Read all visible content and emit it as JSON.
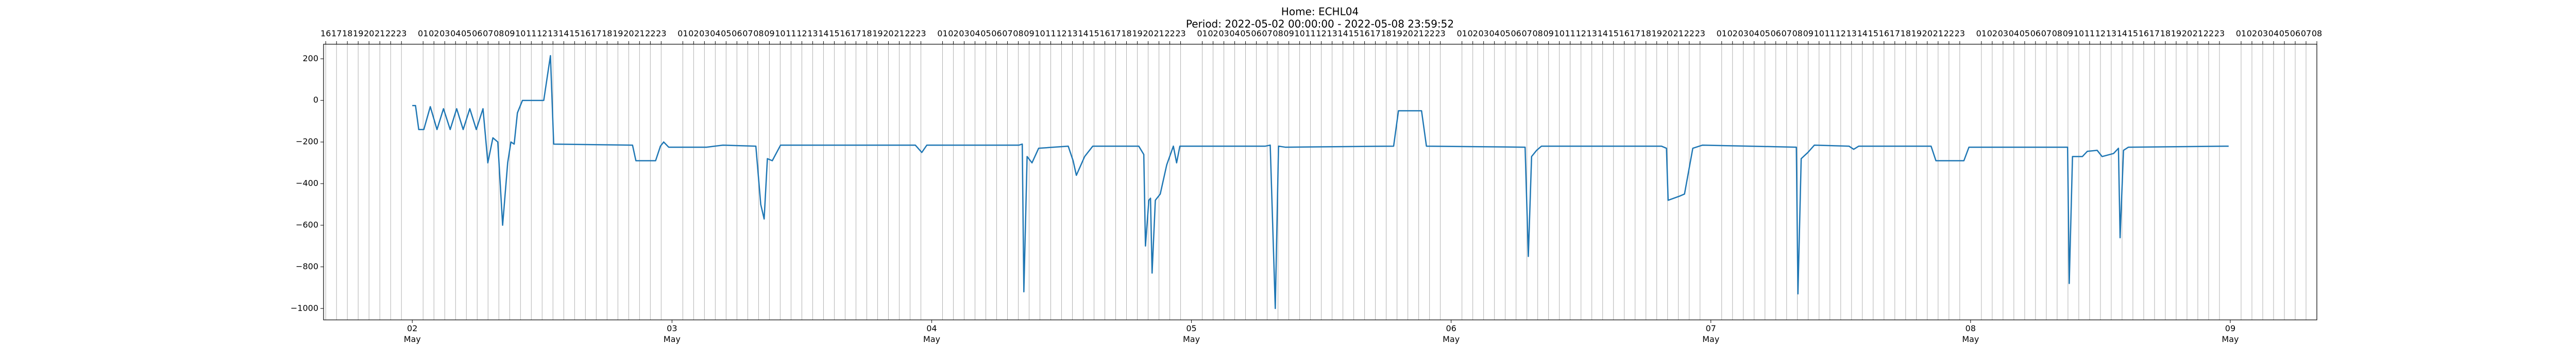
{
  "chart_data": {
    "type": "line",
    "title": "Home: ECHL04",
    "subtitle": "Period: 2022-05-02 00:00:00 - 2022-05-08 23:59:52",
    "x": [
      "2022-05-02T00:00",
      "2022-05-02T00:18",
      "2022-05-02T00:36",
      "2022-05-02T01:04",
      "2022-05-02T01:40",
      "2022-05-02T02:17",
      "2022-05-02T02:53",
      "2022-05-02T03:30",
      "2022-05-02T04:06",
      "2022-05-02T04:42",
      "2022-05-02T05:19",
      "2022-05-02T05:55",
      "2022-05-02T06:32",
      "2022-05-02T06:59",
      "2022-05-02T07:27",
      "2022-05-02T07:54",
      "2022-05-02T08:21",
      "2022-05-02T08:49",
      "2022-05-02T09:07",
      "2022-05-02T09:25",
      "2022-05-02T09:43",
      "2022-05-02T10:11",
      "2022-05-02T12:09",
      "2022-05-02T12:46",
      "2022-05-02T13:04",
      "2022-05-02T20:21",
      "2022-05-02T20:40",
      "2022-05-02T22:29",
      "2022-05-02T22:56",
      "2022-05-02T23:14",
      "2022-05-02T23:42",
      "2022-05-03T03:11",
      "2022-05-03T04:43",
      "2022-05-03T07:45",
      "2022-05-03T08:12",
      "2022-05-03T08:31",
      "2022-05-03T08:49",
      "2022-05-03T09:16",
      "2022-05-03T10:02",
      "2022-05-03T22:29",
      "2022-05-03T23:05",
      "2022-05-03T23:33",
      "2022-05-04T08:04",
      "2022-05-04T08:22",
      "2022-05-04T08:31",
      "2022-05-04T08:49",
      "2022-05-04T09:16",
      "2022-05-04T09:53",
      "2022-05-04T12:37",
      "2022-05-04T13:04",
      "2022-05-04T13:22",
      "2022-05-04T14:08",
      "2022-05-04T14:53",
      "2022-05-04T19:08",
      "2022-05-04T19:36",
      "2022-05-04T19:45",
      "2022-05-04T20:04",
      "2022-05-04T20:13",
      "2022-05-04T20:22",
      "2022-05-04T20:40",
      "2022-05-04T21:07",
      "2022-05-04T21:43",
      "2022-05-04T22:20",
      "2022-05-04T22:38",
      "2022-05-04T22:56",
      "2022-05-05T06:50",
      "2022-05-05T07:17",
      "2022-05-05T07:45",
      "2022-05-05T08:03",
      "2022-05-05T08:40",
      "2022-05-05T18:41",
      "2022-05-05T19:08",
      "2022-05-05T21:16",
      "2022-05-05T21:43",
      "2022-05-06T06:50",
      "2022-05-06T07:08",
      "2022-05-06T07:26",
      "2022-05-06T07:54",
      "2022-05-06T08:21",
      "2022-05-06T19:26",
      "2022-05-06T19:54",
      "2022-05-06T20:03",
      "2022-05-06T21:07",
      "2022-05-06T21:34",
      "2022-05-06T22:20",
      "2022-05-06T23:14",
      "2022-05-07T07:54",
      "2022-05-07T08:03",
      "2022-05-07T08:21",
      "2022-05-07T08:58",
      "2022-05-07T09:34",
      "2022-05-07T12:46",
      "2022-05-07T13:12",
      "2022-05-07T13:40",
      "2022-05-07T20:21",
      "2022-05-07T20:48",
      "2022-05-07T23:23",
      "2022-05-07T23:51",
      "2022-05-08T08:58",
      "2022-05-08T09:07",
      "2022-05-08T09:25",
      "2022-05-08T10:20",
      "2022-05-08T10:47",
      "2022-05-08T11:42",
      "2022-05-08T12:09",
      "2022-05-08T13:13",
      "2022-05-08T13:40",
      "2022-05-08T13:49",
      "2022-05-08T14:08",
      "2022-05-08T14:35",
      "2022-05-08T23:51"
    ],
    "series": [
      {
        "color": "#1f77b4",
        "values": [
          -25,
          -25,
          -140,
          -140,
          -30,
          -140,
          -40,
          -140,
          -40,
          -140,
          -40,
          -140,
          -40,
          -300,
          -180,
          -200,
          -600,
          -300,
          -200,
          -210,
          -60,
          0,
          0,
          215,
          -210,
          -215,
          -290,
          -290,
          -220,
          -200,
          -225,
          -225,
          -215,
          -220,
          -500,
          -570,
          -280,
          -290,
          -215,
          -215,
          -250,
          -215,
          -215,
          -210,
          -920,
          -270,
          -300,
          -230,
          -220,
          -290,
          -360,
          -270,
          -220,
          -220,
          -260,
          -700,
          -480,
          -470,
          -830,
          -480,
          -450,
          -310,
          -220,
          -300,
          -220,
          -220,
          -215,
          -1000,
          -220,
          -225,
          -220,
          -50,
          -50,
          -220,
          -225,
          -750,
          -270,
          -240,
          -220,
          -220,
          -230,
          -480,
          -460,
          -450,
          -230,
          -215,
          -225,
          -930,
          -280,
          -250,
          -215,
          -220,
          -235,
          -220,
          -220,
          -290,
          -290,
          -225,
          -225,
          -880,
          -270,
          -270,
          -245,
          -240,
          -270,
          -255,
          -230,
          -660,
          -240,
          -225,
          -220
        ]
      }
    ],
    "xlim": [
      "2022-05-01T15:48",
      "2022-05-09T08:00"
    ],
    "ylim": [
      -1055,
      270
    ],
    "yticks": [
      {
        "value": -1000,
        "label": "−1000"
      },
      {
        "value": -800,
        "label": "−800"
      },
      {
        "value": -600,
        "label": "−600"
      },
      {
        "value": -400,
        "label": "−400"
      },
      {
        "value": -200,
        "label": "−200"
      },
      0,
      200
    ],
    "xticks": [
      {
        "value": "2022-05-02T00:00",
        "label": "02\nMay"
      },
      {
        "value": "2022-05-03T00:00",
        "label": "03\nMay"
      },
      {
        "value": "2022-05-04T00:00",
        "label": "04\nMay"
      },
      {
        "value": "2022-05-05T00:00",
        "label": "05\nMay"
      },
      {
        "value": "2022-05-06T00:00",
        "label": "06\nMay"
      },
      {
        "value": "2022-05-07T00:00",
        "label": "07\nMay"
      },
      {
        "value": "2022-05-08T00:00",
        "label": "08\nMay"
      },
      {
        "value": "2022-05-09T00:00",
        "label": "09\nMay"
      }
    ],
    "x2ticks": [
      {
        "value": "2022-05-01T16:00",
        "label": "16"
      },
      {
        "value": "2022-05-01T17:00",
        "label": "17"
      },
      {
        "value": "2022-05-01T18:00",
        "label": "18"
      },
      {
        "value": "2022-05-01T19:00",
        "label": "19"
      },
      {
        "value": "2022-05-01T20:00",
        "label": "20"
      },
      {
        "value": "2022-05-01T21:00",
        "label": "21"
      },
      {
        "value": "2022-05-01T22:00",
        "label": "22"
      },
      {
        "value": "2022-05-01T23:00",
        "label": "23"
      },
      {
        "value": "2022-05-02T01:00",
        "label": "01"
      },
      {
        "value": "2022-05-02T02:00",
        "label": "02"
      },
      {
        "value": "2022-05-02T03:00",
        "label": "03"
      },
      {
        "value": "2022-05-02T04:00",
        "label": "04"
      },
      {
        "value": "2022-05-02T05:00",
        "label": "05"
      },
      {
        "value": "2022-05-02T06:00",
        "label": "06"
      },
      {
        "value": "2022-05-02T07:00",
        "label": "07"
      },
      {
        "value": "2022-05-02T08:00",
        "label": "08"
      },
      {
        "value": "2022-05-02T09:00",
        "label": "09"
      },
      {
        "value": "2022-05-02T10:00",
        "label": "10"
      },
      {
        "value": "2022-05-02T11:00",
        "label": "11"
      },
      {
        "value": "2022-05-02T12:00",
        "label": "12"
      },
      {
        "value": "2022-05-02T13:00",
        "label": "13"
      },
      {
        "value": "2022-05-02T14:00",
        "label": "14"
      },
      {
        "value": "2022-05-02T15:00",
        "label": "15"
      },
      {
        "value": "2022-05-02T16:00",
        "label": "16"
      },
      {
        "value": "2022-05-02T17:00",
        "label": "17"
      },
      {
        "value": "2022-05-02T18:00",
        "label": "18"
      },
      {
        "value": "2022-05-02T19:00",
        "label": "19"
      },
      {
        "value": "2022-05-02T20:00",
        "label": "20"
      },
      {
        "value": "2022-05-02T21:00",
        "label": "21"
      },
      {
        "value": "2022-05-02T22:00",
        "label": "22"
      },
      {
        "value": "2022-05-02T23:00",
        "label": "23"
      },
      {
        "value": "2022-05-03T01:00",
        "label": "01"
      },
      {
        "value": "2022-05-03T02:00",
        "label": "02"
      },
      {
        "value": "2022-05-03T03:00",
        "label": "03"
      },
      {
        "value": "2022-05-03T04:00",
        "label": "04"
      },
      {
        "value": "2022-05-03T05:00",
        "label": "05"
      },
      {
        "value": "2022-05-03T06:00",
        "label": "06"
      },
      {
        "value": "2022-05-03T07:00",
        "label": "07"
      },
      {
        "value": "2022-05-03T08:00",
        "label": "08"
      },
      {
        "value": "2022-05-03T09:00",
        "label": "09"
      },
      {
        "value": "2022-05-03T10:00",
        "label": "10"
      },
      {
        "value": "2022-05-03T11:00",
        "label": "11"
      },
      {
        "value": "2022-05-03T12:00",
        "label": "12"
      },
      {
        "value": "2022-05-03T13:00",
        "label": "13"
      },
      {
        "value": "2022-05-03T14:00",
        "label": "14"
      },
      {
        "value": "2022-05-03T15:00",
        "label": "15"
      },
      {
        "value": "2022-05-03T16:00",
        "label": "16"
      },
      {
        "value": "2022-05-03T17:00",
        "label": "17"
      },
      {
        "value": "2022-05-03T18:00",
        "label": "18"
      },
      {
        "value": "2022-05-03T19:00",
        "label": "19"
      },
      {
        "value": "2022-05-03T20:00",
        "label": "20"
      },
      {
        "value": "2022-05-03T21:00",
        "label": "21"
      },
      {
        "value": "2022-05-03T22:00",
        "label": "22"
      },
      {
        "value": "2022-05-03T23:00",
        "label": "23"
      },
      {
        "value": "2022-05-04T01:00",
        "label": "01"
      },
      {
        "value": "2022-05-04T02:00",
        "label": "02"
      },
      {
        "value": "2022-05-04T03:00",
        "label": "03"
      },
      {
        "value": "2022-05-04T04:00",
        "label": "04"
      },
      {
        "value": "2022-05-04T05:00",
        "label": "05"
      },
      {
        "value": "2022-05-04T06:00",
        "label": "06"
      },
      {
        "value": "2022-05-04T07:00",
        "label": "07"
      },
      {
        "value": "2022-05-04T08:00",
        "label": "08"
      },
      {
        "value": "2022-05-04T09:00",
        "label": "09"
      },
      {
        "value": "2022-05-04T10:00",
        "label": "10"
      },
      {
        "value": "2022-05-04T11:00",
        "label": "11"
      },
      {
        "value": "2022-05-04T12:00",
        "label": "12"
      },
      {
        "value": "2022-05-04T13:00",
        "label": "13"
      },
      {
        "value": "2022-05-04T14:00",
        "label": "14"
      },
      {
        "value": "2022-05-04T15:00",
        "label": "15"
      },
      {
        "value": "2022-05-04T16:00",
        "label": "16"
      },
      {
        "value": "2022-05-04T17:00",
        "label": "17"
      },
      {
        "value": "2022-05-04T18:00",
        "label": "18"
      },
      {
        "value": "2022-05-04T19:00",
        "label": "19"
      },
      {
        "value": "2022-05-04T20:00",
        "label": "20"
      },
      {
        "value": "2022-05-04T21:00",
        "label": "21"
      },
      {
        "value": "2022-05-04T22:00",
        "label": "22"
      },
      {
        "value": "2022-05-04T23:00",
        "label": "23"
      },
      {
        "value": "2022-05-05T01:00",
        "label": "01"
      },
      {
        "value": "2022-05-05T02:00",
        "label": "02"
      },
      {
        "value": "2022-05-05T03:00",
        "label": "03"
      },
      {
        "value": "2022-05-05T04:00",
        "label": "04"
      },
      {
        "value": "2022-05-05T05:00",
        "label": "05"
      },
      {
        "value": "2022-05-05T06:00",
        "label": "06"
      },
      {
        "value": "2022-05-05T07:00",
        "label": "07"
      },
      {
        "value": "2022-05-05T08:00",
        "label": "08"
      },
      {
        "value": "2022-05-05T09:00",
        "label": "09"
      },
      {
        "value": "2022-05-05T10:00",
        "label": "10"
      },
      {
        "value": "2022-05-05T11:00",
        "label": "11"
      },
      {
        "value": "2022-05-05T12:00",
        "label": "12"
      },
      {
        "value": "2022-05-05T13:00",
        "label": "13"
      },
      {
        "value": "2022-05-05T14:00",
        "label": "14"
      },
      {
        "value": "2022-05-05T15:00",
        "label": "15"
      },
      {
        "value": "2022-05-05T16:00",
        "label": "16"
      },
      {
        "value": "2022-05-05T17:00",
        "label": "17"
      },
      {
        "value": "2022-05-05T18:00",
        "label": "18"
      },
      {
        "value": "2022-05-05T19:00",
        "label": "19"
      },
      {
        "value": "2022-05-05T20:00",
        "label": "20"
      },
      {
        "value": "2022-05-05T21:00",
        "label": "21"
      },
      {
        "value": "2022-05-05T22:00",
        "label": "22"
      },
      {
        "value": "2022-05-05T23:00",
        "label": "23"
      },
      {
        "value": "2022-05-06T01:00",
        "label": "01"
      },
      {
        "value": "2022-05-06T02:00",
        "label": "02"
      },
      {
        "value": "2022-05-06T03:00",
        "label": "03"
      },
      {
        "value": "2022-05-06T04:00",
        "label": "04"
      },
      {
        "value": "2022-05-06T05:00",
        "label": "05"
      },
      {
        "value": "2022-05-06T06:00",
        "label": "06"
      },
      {
        "value": "2022-05-06T07:00",
        "label": "07"
      },
      {
        "value": "2022-05-06T08:00",
        "label": "08"
      },
      {
        "value": "2022-05-06T09:00",
        "label": "09"
      },
      {
        "value": "2022-05-06T10:00",
        "label": "10"
      },
      {
        "value": "2022-05-06T11:00",
        "label": "11"
      },
      {
        "value": "2022-05-06T12:00",
        "label": "12"
      },
      {
        "value": "2022-05-06T13:00",
        "label": "13"
      },
      {
        "value": "2022-05-06T14:00",
        "label": "14"
      },
      {
        "value": "2022-05-06T15:00",
        "label": "15"
      },
      {
        "value": "2022-05-06T16:00",
        "label": "16"
      },
      {
        "value": "2022-05-06T17:00",
        "label": "17"
      },
      {
        "value": "2022-05-06T18:00",
        "label": "18"
      },
      {
        "value": "2022-05-06T19:00",
        "label": "19"
      },
      {
        "value": "2022-05-06T20:00",
        "label": "20"
      },
      {
        "value": "2022-05-06T21:00",
        "label": "21"
      },
      {
        "value": "2022-05-06T22:00",
        "label": "22"
      },
      {
        "value": "2022-05-06T23:00",
        "label": "23"
      },
      {
        "value": "2022-05-07T01:00",
        "label": "01"
      },
      {
        "value": "2022-05-07T02:00",
        "label": "02"
      },
      {
        "value": "2022-05-07T03:00",
        "label": "03"
      },
      {
        "value": "2022-05-07T04:00",
        "label": "04"
      },
      {
        "value": "2022-05-07T05:00",
        "label": "05"
      },
      {
        "value": "2022-05-07T06:00",
        "label": "06"
      },
      {
        "value": "2022-05-07T07:00",
        "label": "07"
      },
      {
        "value": "2022-05-07T08:00",
        "label": "08"
      },
      {
        "value": "2022-05-07T09:00",
        "label": "09"
      },
      {
        "value": "2022-05-07T10:00",
        "label": "10"
      },
      {
        "value": "2022-05-07T11:00",
        "label": "11"
      },
      {
        "value": "2022-05-07T12:00",
        "label": "12"
      },
      {
        "value": "2022-05-07T13:00",
        "label": "13"
      },
      {
        "value": "2022-05-07T14:00",
        "label": "14"
      },
      {
        "value": "2022-05-07T15:00",
        "label": "15"
      },
      {
        "value": "2022-05-07T16:00",
        "label": "16"
      },
      {
        "value": "2022-05-07T17:00",
        "label": "17"
      },
      {
        "value": "2022-05-07T18:00",
        "label": "18"
      },
      {
        "value": "2022-05-07T19:00",
        "label": "19"
      },
      {
        "value": "2022-05-07T20:00",
        "label": "20"
      },
      {
        "value": "2022-05-07T21:00",
        "label": "21"
      },
      {
        "value": "2022-05-07T22:00",
        "label": "22"
      },
      {
        "value": "2022-05-07T23:00",
        "label": "23"
      },
      {
        "value": "2022-05-08T01:00",
        "label": "01"
      },
      {
        "value": "2022-05-08T02:00",
        "label": "02"
      },
      {
        "value": "2022-05-08T03:00",
        "label": "03"
      },
      {
        "value": "2022-05-08T04:00",
        "label": "04"
      },
      {
        "value": "2022-05-08T05:00",
        "label": "05"
      },
      {
        "value": "2022-05-08T06:00",
        "label": "06"
      },
      {
        "value": "2022-05-08T07:00",
        "label": "07"
      },
      {
        "value": "2022-05-08T08:00",
        "label": "08"
      },
      {
        "value": "2022-05-08T09:00",
        "label": "09"
      },
      {
        "value": "2022-05-08T10:00",
        "label": "10"
      },
      {
        "value": "2022-05-08T11:00",
        "label": "11"
      },
      {
        "value": "2022-05-08T12:00",
        "label": "12"
      },
      {
        "value": "2022-05-08T13:00",
        "label": "13"
      },
      {
        "value": "2022-05-08T14:00",
        "label": "14"
      },
      {
        "value": "2022-05-08T15:00",
        "label": "15"
      },
      {
        "value": "2022-05-08T16:00",
        "label": "16"
      },
      {
        "value": "2022-05-08T17:00",
        "label": "17"
      },
      {
        "value": "2022-05-08T18:00",
        "label": "18"
      },
      {
        "value": "2022-05-08T19:00",
        "label": "19"
      },
      {
        "value": "2022-05-08T20:00",
        "label": "20"
      },
      {
        "value": "2022-05-08T21:00",
        "label": "21"
      },
      {
        "value": "2022-05-08T22:00",
        "label": "22"
      },
      {
        "value": "2022-05-08T23:00",
        "label": "23"
      },
      {
        "value": "2022-05-09T01:00",
        "label": "01"
      },
      {
        "value": "2022-05-09T02:00",
        "label": "02"
      },
      {
        "value": "2022-05-09T03:00",
        "label": "03"
      },
      {
        "value": "2022-05-09T04:00",
        "label": "04"
      },
      {
        "value": "2022-05-09T05:00",
        "label": "05"
      },
      {
        "value": "2022-05-09T06:00",
        "label": "06"
      },
      {
        "value": "2022-05-09T07:00",
        "label": "07"
      },
      {
        "value": "2022-05-09T08:00",
        "label": "08"
      }
    ],
    "grid": true
  }
}
